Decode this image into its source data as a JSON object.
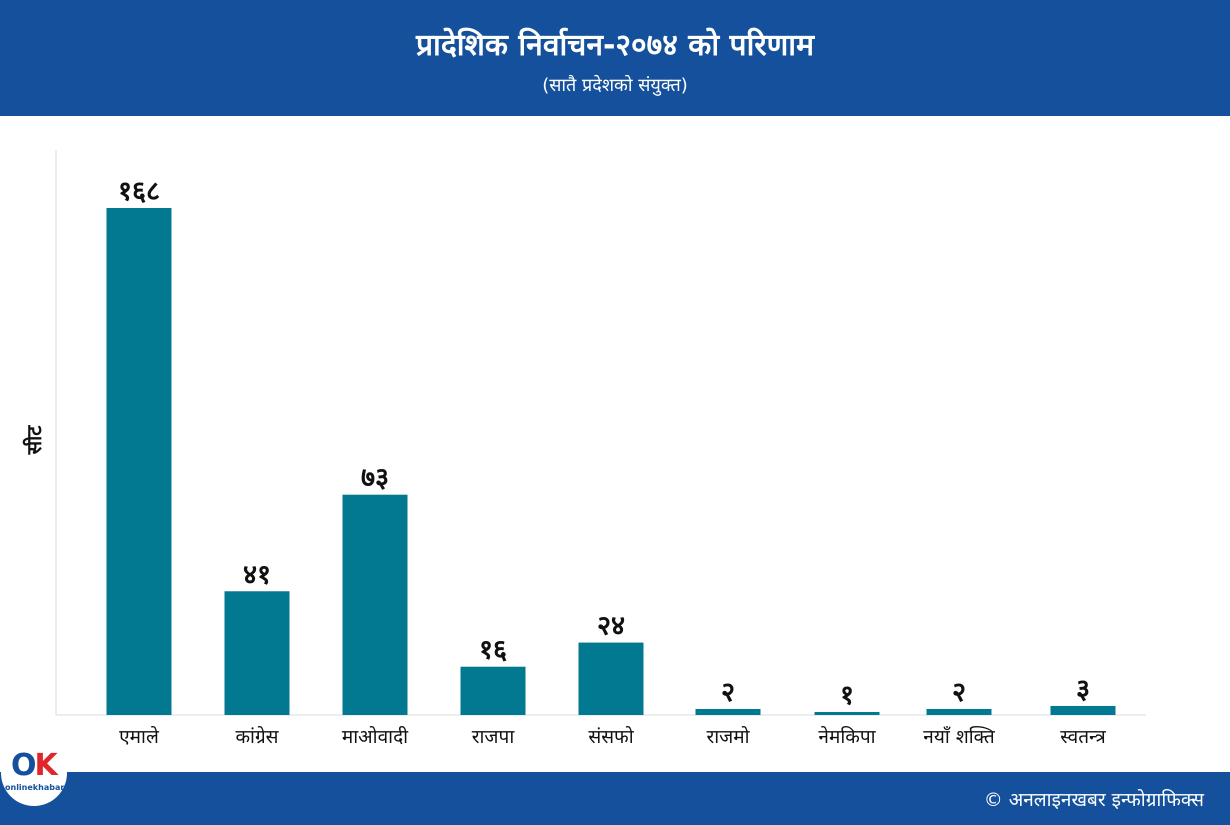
{
  "header": {
    "title": "प्रादेशिक निर्वाचन-२०७४ को परिणाम",
    "subtitle": "(सातै प्रदेशको संयुक्त)"
  },
  "footer": {
    "credit": "© अनलाइनखबर इन्फोग्राफिक्स",
    "logo_mark_o": "O",
    "logo_mark_k": "K",
    "logo_brand": "onlinekhabar"
  },
  "colors": {
    "header_bg": "#14509b",
    "bar": "#037891",
    "axis": "#d4dde2",
    "text": "#111111"
  },
  "chart_data": {
    "type": "bar",
    "title": "प्रादेशिक निर्वाचन-२०७४ को परिणाम",
    "subtitle": "(सातै प्रदेशको संयुक्त)",
    "xlabel": "",
    "ylabel": "सीट",
    "ylim": [
      0,
      190
    ],
    "grid": false,
    "legend": "none",
    "categories": [
      "एमाले",
      "कांग्रेस",
      "माओवादी",
      "राजपा",
      "संसफो",
      "राजमो",
      "नेमकिपा",
      "नयाँ  शक्ति",
      "स्वतन्त्र"
    ],
    "values": [
      168,
      41,
      73,
      16,
      24,
      2,
      1,
      2,
      3
    ],
    "value_labels": [
      "१६८",
      "४१",
      "७३",
      "१६",
      "२४",
      "२",
      "१",
      "२",
      "३"
    ]
  }
}
